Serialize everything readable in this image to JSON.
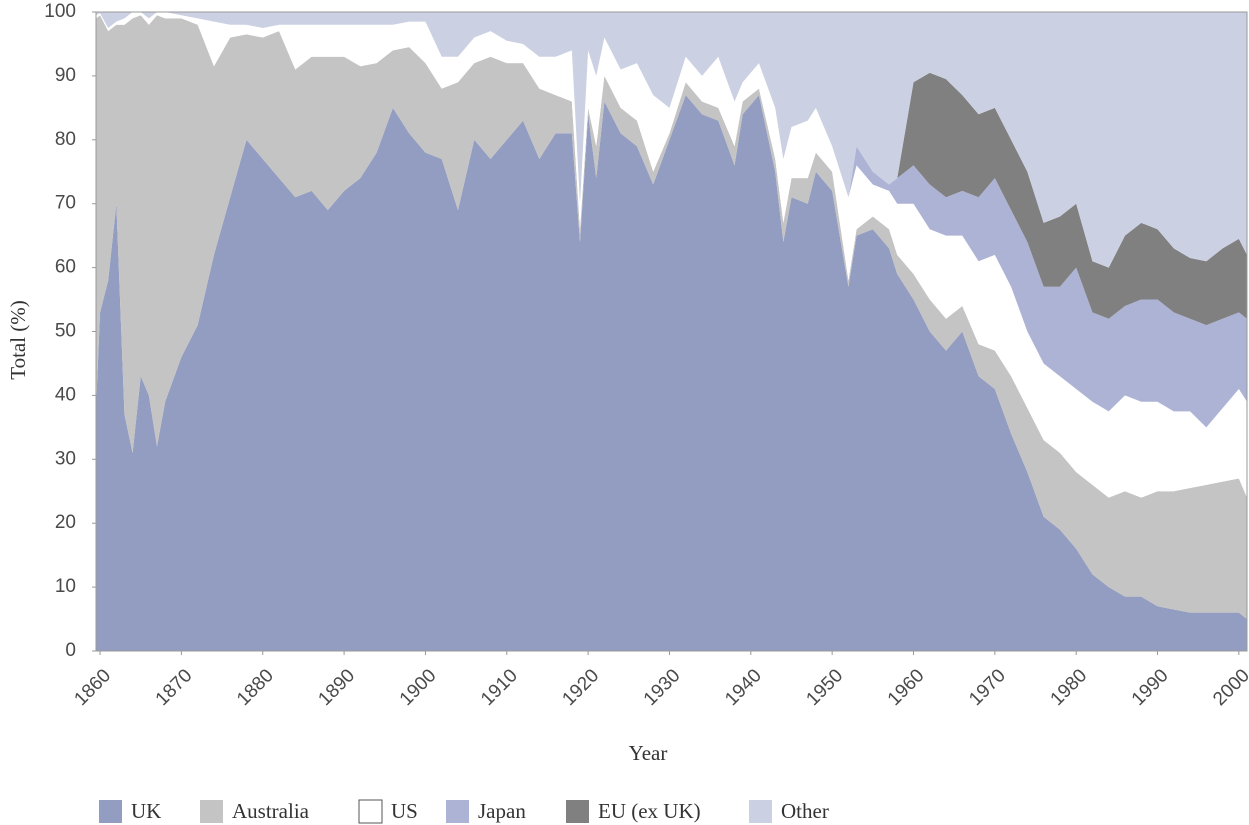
{
  "chart_data": {
    "type": "stacked-area",
    "x_label": "Year",
    "y_label": "Total (%)",
    "xlim": [
      1859.5,
      2001
    ],
    "ylim": [
      0,
      100
    ],
    "xticks": [
      1860,
      1870,
      1880,
      1890,
      1900,
      1910,
      1920,
      1930,
      1940,
      1950,
      1960,
      1970,
      1980,
      1990,
      2000
    ],
    "yticks": [
      0,
      10,
      20,
      30,
      40,
      50,
      60,
      70,
      80,
      90,
      100
    ],
    "x": [
      1859.5,
      1860,
      1861,
      1862,
      1863,
      1864,
      1865,
      1866,
      1867,
      1868,
      1870,
      1872,
      1874,
      1876,
      1878,
      1880,
      1882,
      1884,
      1886,
      1888,
      1890,
      1892,
      1894,
      1896,
      1898,
      1900,
      1902,
      1904,
      1906,
      1908,
      1910,
      1912,
      1914,
      1916,
      1918,
      1919,
      1920,
      1921,
      1922,
      1924,
      1926,
      1928,
      1930,
      1932,
      1934,
      1936,
      1938,
      1939,
      1941,
      1943,
      1944,
      1945,
      1947,
      1948,
      1950,
      1952,
      1953,
      1955,
      1957,
      1958,
      1960,
      1962,
      1964,
      1966,
      1968,
      1970,
      1972,
      1974,
      1976,
      1978,
      1980,
      1982,
      1984,
      1986,
      1988,
      1990,
      1992,
      1994,
      1996,
      1998,
      2000,
      2001
    ],
    "series": [
      {
        "name": "UK",
        "color": "#939dc1",
        "values": [
          38,
          53,
          58,
          70,
          37,
          31,
          43,
          40,
          32,
          39,
          46,
          51,
          62,
          71,
          80,
          77,
          74,
          71,
          72,
          69,
          72,
          74,
          78,
          85,
          81,
          78,
          77,
          69,
          80,
          77,
          80,
          83,
          77,
          81,
          81,
          64,
          84,
          74,
          86,
          81,
          79,
          73,
          80,
          87,
          84,
          83,
          76,
          84,
          87,
          75,
          64,
          71,
          70,
          75,
          72,
          57,
          65,
          66,
          63,
          59,
          55,
          50,
          47,
          50,
          43,
          41,
          34,
          28,
          21,
          19,
          16,
          12,
          10,
          8.5,
          8.5,
          7,
          6.5,
          6,
          6,
          6,
          6,
          5
        ]
      },
      {
        "name": "Australia",
        "color": "#c4c4c4",
        "values": [
          61,
          46.5,
          39,
          28,
          61,
          68,
          56.5,
          58,
          67.5,
          60,
          53,
          47,
          29.5,
          25,
          16.5,
          19,
          23,
          20,
          21,
          24,
          21,
          17.5,
          14,
          9,
          13.5,
          14,
          11,
          20,
          12,
          16,
          12,
          9,
          11,
          6,
          5,
          2,
          1,
          5,
          4,
          4,
          4,
          2,
          1,
          2,
          2,
          2,
          3,
          2,
          1,
          2,
          3,
          3,
          4,
          3,
          3,
          1,
          1,
          2,
          3,
          3,
          4,
          5,
          5,
          4,
          5,
          6,
          9,
          10,
          12,
          12,
          12,
          14,
          14,
          16.5,
          15.5,
          18,
          18.5,
          19.5,
          20,
          20.5,
          21,
          19
        ]
      },
      {
        "name": "US",
        "color": "#ffffff",
        "values": [
          0.5,
          0.3,
          0.5,
          0.5,
          1,
          1,
          0.5,
          1,
          0.5,
          1,
          0.5,
          1,
          7,
          2,
          1.5,
          1.5,
          1,
          7,
          5,
          5,
          5,
          6.5,
          6,
          4,
          4,
          6.5,
          5,
          4,
          4,
          4,
          3.5,
          3,
          5,
          6,
          8,
          4,
          9,
          11,
          6,
          6,
          9,
          12,
          4,
          4,
          4,
          8,
          7,
          3,
          4,
          8,
          10,
          8,
          9,
          7,
          4,
          13,
          10,
          5,
          6,
          8,
          11,
          11,
          13,
          11,
          13,
          15,
          14,
          12,
          12,
          12,
          13,
          13,
          13.5,
          15,
          15,
          14,
          12.5,
          12,
          9,
          11.5,
          14,
          15
        ]
      },
      {
        "name": "Japan",
        "color": "#adb3d5",
        "values": [
          0,
          0,
          0,
          0,
          0,
          0,
          0,
          0,
          0,
          0,
          0,
          0,
          0,
          0,
          0,
          0,
          0,
          0,
          0,
          0,
          0,
          0,
          0,
          0,
          0,
          0,
          0,
          0,
          0,
          0,
          0,
          0,
          0,
          0,
          0,
          0,
          0,
          0,
          0,
          0,
          0,
          0,
          0,
          0,
          0,
          0,
          0,
          0,
          0,
          0,
          0,
          0,
          0,
          0,
          0,
          0,
          3,
          2,
          1,
          4,
          6,
          7,
          6,
          7,
          10,
          12,
          12,
          14,
          12,
          14,
          19,
          14,
          14.5,
          14,
          16,
          16,
          15.5,
          14.5,
          16,
          14,
          12,
          13
        ]
      },
      {
        "name": "EU (ex UK)",
        "color": "#808080",
        "values": [
          0,
          0,
          0,
          0,
          0,
          0,
          0,
          0,
          0,
          0,
          0,
          0,
          0,
          0,
          0,
          0,
          0,
          0,
          0,
          0,
          0,
          0,
          0,
          0,
          0,
          0,
          0,
          0,
          0,
          0,
          0,
          0,
          0,
          0,
          0,
          0,
          0,
          0,
          0,
          0,
          0,
          0,
          0,
          0,
          0,
          0,
          0,
          0,
          0,
          0,
          0,
          0,
          0,
          0,
          0,
          0,
          0,
          0,
          0,
          0,
          13,
          17.5,
          18.5,
          15,
          13,
          11,
          11,
          11,
          10,
          11,
          10,
          8,
          8,
          11,
          12,
          11,
          10,
          9.5,
          10,
          11,
          11.5,
          10
        ]
      },
      {
        "name": "Other",
        "color": "#cbd1e3",
        "values": [
          0.5,
          0.2,
          2.5,
          1.5,
          1,
          0,
          0,
          1,
          0,
          0,
          0.5,
          1,
          1.5,
          2,
          2,
          2.5,
          2,
          2,
          2,
          2,
          2,
          2,
          2,
          2,
          1.5,
          1.5,
          7,
          7,
          4,
          3,
          4.5,
          5,
          7,
          7,
          6,
          30,
          6,
          10,
          4,
          9,
          8,
          13,
          15,
          7,
          10,
          7,
          14,
          11,
          8,
          15,
          23,
          18,
          17,
          15,
          21,
          29,
          21,
          25,
          27,
          26,
          11,
          9.5,
          10.5,
          13,
          16,
          15,
          20,
          25,
          33,
          32,
          30,
          39,
          40,
          35,
          33,
          34,
          37,
          38.5,
          39,
          37,
          35.5,
          38
        ]
      }
    ]
  }
}
